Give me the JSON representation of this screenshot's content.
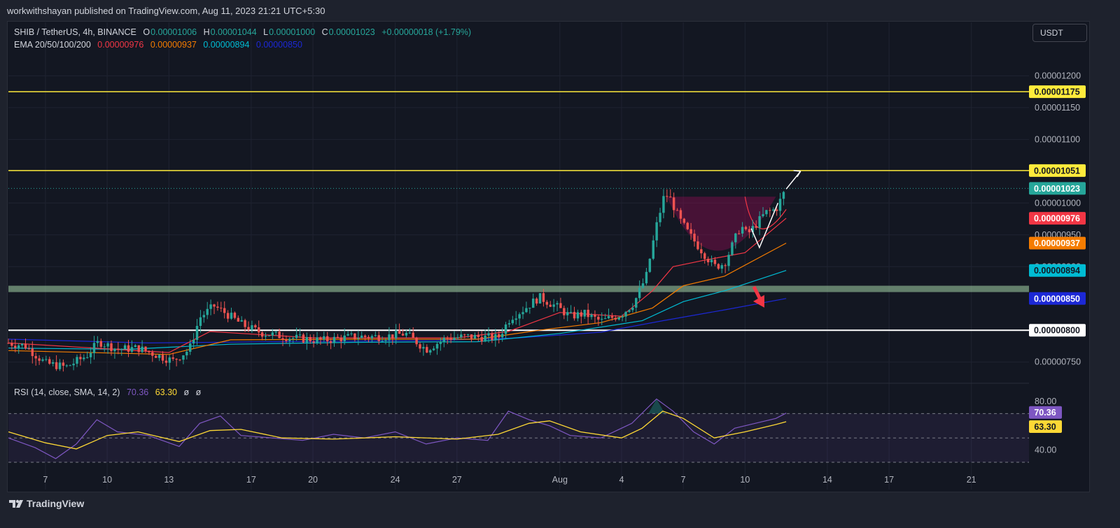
{
  "header": {
    "published": "workwithshayan published on TradingView.com, Aug 11, 2023 21:21 UTC+5:30"
  },
  "legend": {
    "symbol": "SHIB / TetherUS, 4h, BINANCE",
    "o_key": "O",
    "o": "0.00001006",
    "h_key": "H",
    "h": "0.00001044",
    "l_key": "L",
    "l": "0.00001000",
    "c_key": "C",
    "c": "0.00001023",
    "change": "+0.00000018 (+1.79%)",
    "ema_label": "EMA 20/50/100/200",
    "ema20": "0.00000976",
    "ema50": "0.00000937",
    "ema100": "0.00000894",
    "ema200": "0.00000850"
  },
  "rsi_legend": {
    "label": "RSI (14, close, SMA, 14, 2)",
    "rsi": "70.36",
    "sma": "63.30",
    "na1": "ø",
    "na2": "ø"
  },
  "currency_button": "USDT",
  "footer": {
    "brand": "TradingView"
  },
  "colors": {
    "up": "#26a69a",
    "down": "#ef5350",
    "ema20": "#f23645",
    "ema50": "#f57c00",
    "ema100": "#00bcd4",
    "ema200": "#1c28d6",
    "resistance": "#ffeb3b",
    "support_zone": "#a5d6a7",
    "rsi": "#7e57c2",
    "rsi_sma": "#fdd835"
  },
  "chart_data": {
    "type": "candlestick",
    "price_axis": {
      "ticks": [
        "0.00001200",
        "0.00001150",
        "0.00001100",
        "0.00001000",
        "0.00000950",
        "0.00000900",
        "0.00000750"
      ],
      "range": [
        7.2e-06,
        1.24e-05
      ]
    },
    "time_axis": {
      "ticks": [
        "7",
        "10",
        "13",
        "17",
        "20",
        "24",
        "27",
        "Aug",
        "4",
        "7",
        "10",
        "14",
        "17",
        "21"
      ],
      "tick_days": [
        7,
        10,
        13,
        17,
        20,
        24,
        27,
        32,
        35,
        38,
        41,
        45,
        48,
        52
      ],
      "range_days": [
        5.2,
        54.8
      ]
    },
    "price_labels": [
      {
        "value": "0.00001175",
        "price": 1.175e-05,
        "kind": "resistance"
      },
      {
        "value": "0.00001051",
        "price": 1.051e-05,
        "kind": "resistance"
      },
      {
        "value": "0.00001023",
        "price": 1.023e-05,
        "kind": "last"
      },
      {
        "value": "0.00000976",
        "price": 9.76e-06,
        "kind": "ema20"
      },
      {
        "value": "0.00000937",
        "price": 9.37e-06,
        "kind": "ema50"
      },
      {
        "value": "0.00000894",
        "price": 8.94e-06,
        "kind": "ema100"
      },
      {
        "value": "0.00000850",
        "price": 8.5e-06,
        "kind": "ema200"
      },
      {
        "value": "0.00000800",
        "price": 8e-06,
        "kind": "support"
      }
    ],
    "support_zone": [
      8.6e-06,
      8.7e-06
    ],
    "close_path": [
      [
        5.2,
        7.8e-06
      ],
      [
        6.0,
        7.76e-06
      ],
      [
        7.0,
        7.48e-06
      ],
      [
        8.0,
        7.42e-06
      ],
      [
        9.0,
        7.6e-06
      ],
      [
        9.6,
        7.82e-06
      ],
      [
        10.5,
        7.7e-06
      ],
      [
        11.5,
        7.72e-06
      ],
      [
        12.5,
        7.6e-06
      ],
      [
        13.2,
        7.52e-06
      ],
      [
        14.0,
        7.7e-06
      ],
      [
        14.5,
        8.2e-06
      ],
      [
        15.2,
        8.38e-06
      ],
      [
        15.8,
        8.26e-06
      ],
      [
        16.6,
        8.08e-06
      ],
      [
        17.5,
        7.96e-06
      ],
      [
        19.0,
        7.88e-06
      ],
      [
        20.5,
        7.84e-06
      ],
      [
        22.0,
        7.9e-06
      ],
      [
        23.5,
        7.9e-06
      ],
      [
        24.5,
        7.95e-06
      ],
      [
        25.5,
        7.7e-06
      ],
      [
        26.5,
        7.88e-06
      ],
      [
        27.5,
        7.9e-06
      ],
      [
        29.0,
        7.88e-06
      ],
      [
        29.6,
        8.2e-06
      ],
      [
        30.2,
        8.32e-06
      ],
      [
        31.0,
        8.52e-06
      ],
      [
        31.8,
        8.38e-06
      ],
      [
        32.5,
        8.22e-06
      ],
      [
        33.2,
        8.26e-06
      ],
      [
        34.0,
        8.14e-06
      ],
      [
        35.0,
        8.25e-06
      ],
      [
        35.6,
        8.43e-06
      ],
      [
        36.2,
        8.85e-06
      ],
      [
        36.7,
        9.65e-06
      ],
      [
        37.1,
        1.015e-05
      ],
      [
        37.4,
        1.005e-05
      ],
      [
        37.8,
        9.75e-06
      ],
      [
        38.3,
        9.5e-06
      ],
      [
        38.9,
        9.25e-06
      ],
      [
        39.5,
        9e-06
      ],
      [
        40.0,
        9.05e-06
      ],
      [
        40.4,
        9.35e-06
      ],
      [
        40.8,
        9.65e-06
      ],
      [
        41.1,
        9.5e-06
      ],
      [
        41.5,
        9.65e-06
      ],
      [
        42.0,
        9.85e-06
      ],
      [
        42.5,
        9.9e-06
      ],
      [
        43.0,
        1.023e-05
      ]
    ],
    "ema_paths": {
      "ema20": [
        [
          5.2,
          7.8e-06
        ],
        [
          13.0,
          7.65e-06
        ],
        [
          15.0,
          7.98e-06
        ],
        [
          20.0,
          7.88e-06
        ],
        [
          27.0,
          7.88e-06
        ],
        [
          29.5,
          7.98e-06
        ],
        [
          32.0,
          8.28e-06
        ],
        [
          35.0,
          8.22e-06
        ],
        [
          36.5,
          8.62e-06
        ],
        [
          37.5,
          9e-06
        ],
        [
          39.0,
          9.1e-06
        ],
        [
          41.0,
          9.22e-06
        ],
        [
          43.0,
          9.76e-06
        ]
      ],
      "ema50": [
        [
          5.2,
          7.68e-06
        ],
        [
          13.0,
          7.62e-06
        ],
        [
          16.0,
          7.85e-06
        ],
        [
          22.0,
          7.86e-06
        ],
        [
          28.0,
          7.86e-06
        ],
        [
          31.0,
          8e-06
        ],
        [
          34.0,
          8.12e-06
        ],
        [
          36.5,
          8.35e-06
        ],
        [
          38.0,
          8.7e-06
        ],
        [
          40.0,
          8.85e-06
        ],
        [
          43.0,
          9.37e-06
        ]
      ],
      "ema100": [
        [
          5.2,
          7.72e-06
        ],
        [
          11.0,
          7.7e-06
        ],
        [
          16.0,
          7.78e-06
        ],
        [
          22.0,
          7.81e-06
        ],
        [
          28.0,
          7.82e-06
        ],
        [
          32.0,
          7.95e-06
        ],
        [
          36.0,
          8.15e-06
        ],
        [
          38.0,
          8.45e-06
        ],
        [
          40.0,
          8.62e-06
        ],
        [
          43.0,
          8.94e-06
        ]
      ],
      "ema200": [
        [
          5.2,
          7.86e-06
        ],
        [
          12.0,
          7.8e-06
        ],
        [
          18.0,
          7.82e-06
        ],
        [
          26.0,
          7.84e-06
        ],
        [
          30.0,
          7.88e-06
        ],
        [
          34.0,
          7.97e-06
        ],
        [
          37.0,
          8.15e-06
        ],
        [
          40.0,
          8.32e-06
        ],
        [
          43.0,
          8.5e-06
        ]
      ]
    },
    "rsi": {
      "ticks": [
        "80.00",
        "40.00"
      ],
      "range": [
        26,
        88
      ],
      "levels": [
        70,
        50,
        30
      ],
      "rsi_path": [
        [
          5.2,
          50
        ],
        [
          6.5,
          42
        ],
        [
          7.5,
          33
        ],
        [
          8.5,
          45
        ],
        [
          9.5,
          65
        ],
        [
          10.5,
          55
        ],
        [
          12.0,
          52
        ],
        [
          13.5,
          43
        ],
        [
          14.5,
          62
        ],
        [
          15.5,
          68
        ],
        [
          16.5,
          52
        ],
        [
          18.0,
          50
        ],
        [
          19.5,
          48
        ],
        [
          21.0,
          53
        ],
        [
          22.5,
          50
        ],
        [
          24.0,
          55
        ],
        [
          25.5,
          45
        ],
        [
          27.0,
          50
        ],
        [
          28.5,
          48
        ],
        [
          29.5,
          72
        ],
        [
          30.5,
          65
        ],
        [
          31.5,
          60
        ],
        [
          32.5,
          52
        ],
        [
          34.0,
          50
        ],
        [
          35.5,
          62
        ],
        [
          36.7,
          82
        ],
        [
          37.5,
          72
        ],
        [
          38.5,
          55
        ],
        [
          39.5,
          45
        ],
        [
          40.5,
          58
        ],
        [
          41.5,
          62
        ],
        [
          42.5,
          66
        ],
        [
          43.0,
          70.36
        ]
      ],
      "sma_path": [
        [
          5.2,
          55
        ],
        [
          7.0,
          46
        ],
        [
          8.5,
          41
        ],
        [
          10.0,
          52
        ],
        [
          11.5,
          55
        ],
        [
          13.5,
          47
        ],
        [
          15.0,
          56
        ],
        [
          16.5,
          57
        ],
        [
          18.5,
          50
        ],
        [
          21.0,
          49
        ],
        [
          24.0,
          51
        ],
        [
          27.0,
          49
        ],
        [
          29.0,
          53
        ],
        [
          30.5,
          62
        ],
        [
          31.5,
          64
        ],
        [
          33.0,
          55
        ],
        [
          35.0,
          50
        ],
        [
          36.0,
          58
        ],
        [
          37.0,
          72
        ],
        [
          38.0,
          66
        ],
        [
          39.5,
          50
        ],
        [
          41.0,
          55
        ],
        [
          42.5,
          61
        ],
        [
          43.0,
          63.3
        ]
      ]
    }
  }
}
